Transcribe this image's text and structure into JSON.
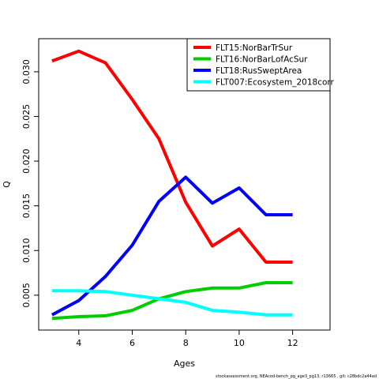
{
  "chart_data": {
    "type": "line",
    "title": "",
    "xlabel": "Ages",
    "ylabel": "Q",
    "xlim": [
      2.5,
      13.4
    ],
    "ylim": [
      0.0011,
      0.0337
    ],
    "xticks": [
      4,
      6,
      8,
      10,
      12
    ],
    "yticks": [
      0.005,
      0.01,
      0.015,
      0.02,
      0.025,
      0.03
    ],
    "ytick_labels": [
      "0.005",
      "0.010",
      "0.015",
      "0.020",
      "0.025",
      "0.030"
    ],
    "grid": false,
    "legend_position": "top-right",
    "series": [
      {
        "name": "FLT15:NorBarTrSur",
        "color": "#ff0000",
        "x": [
          3,
          4,
          5,
          6,
          7,
          8,
          9,
          10,
          11,
          12
        ],
        "y": [
          0.0312,
          0.0323,
          0.031,
          0.0269,
          0.0225,
          0.0154,
          0.0105,
          0.0124,
          0.0087,
          0.0087
        ]
      },
      {
        "name": "FLT16:NorBarLofAcSur",
        "color": "#00cd00",
        "x": [
          3,
          4,
          5,
          6,
          7,
          8,
          9,
          10,
          11,
          12
        ],
        "y": [
          0.0024,
          0.0026,
          0.0027,
          0.0033,
          0.0046,
          0.0054,
          0.0058,
          0.0058,
          0.0064,
          0.0064
        ]
      },
      {
        "name": "FLT18:RusSweptArea",
        "color": "#0000ff",
        "x": [
          3,
          4,
          5,
          6,
          7,
          8,
          9,
          10,
          11,
          12
        ],
        "y": [
          0.0028,
          0.0044,
          0.0071,
          0.0106,
          0.0155,
          0.0182,
          0.0153,
          0.017,
          0.014,
          0.014
        ]
      },
      {
        "name": "FLT007:Ecosystem_2018corr",
        "color": "#00ffff",
        "x": [
          3,
          4,
          5,
          6,
          7,
          8,
          9,
          10,
          11,
          12
        ],
        "y": [
          0.0055,
          0.0055,
          0.0054,
          0.005,
          0.0046,
          0.0042,
          0.0033,
          0.0031,
          0.0028,
          0.0028
        ]
      }
    ]
  },
  "footnote": "stockassessment.org, NEAcod-bench_pg_age3_pg13, r13665 , git: c28bdc2a44ad"
}
